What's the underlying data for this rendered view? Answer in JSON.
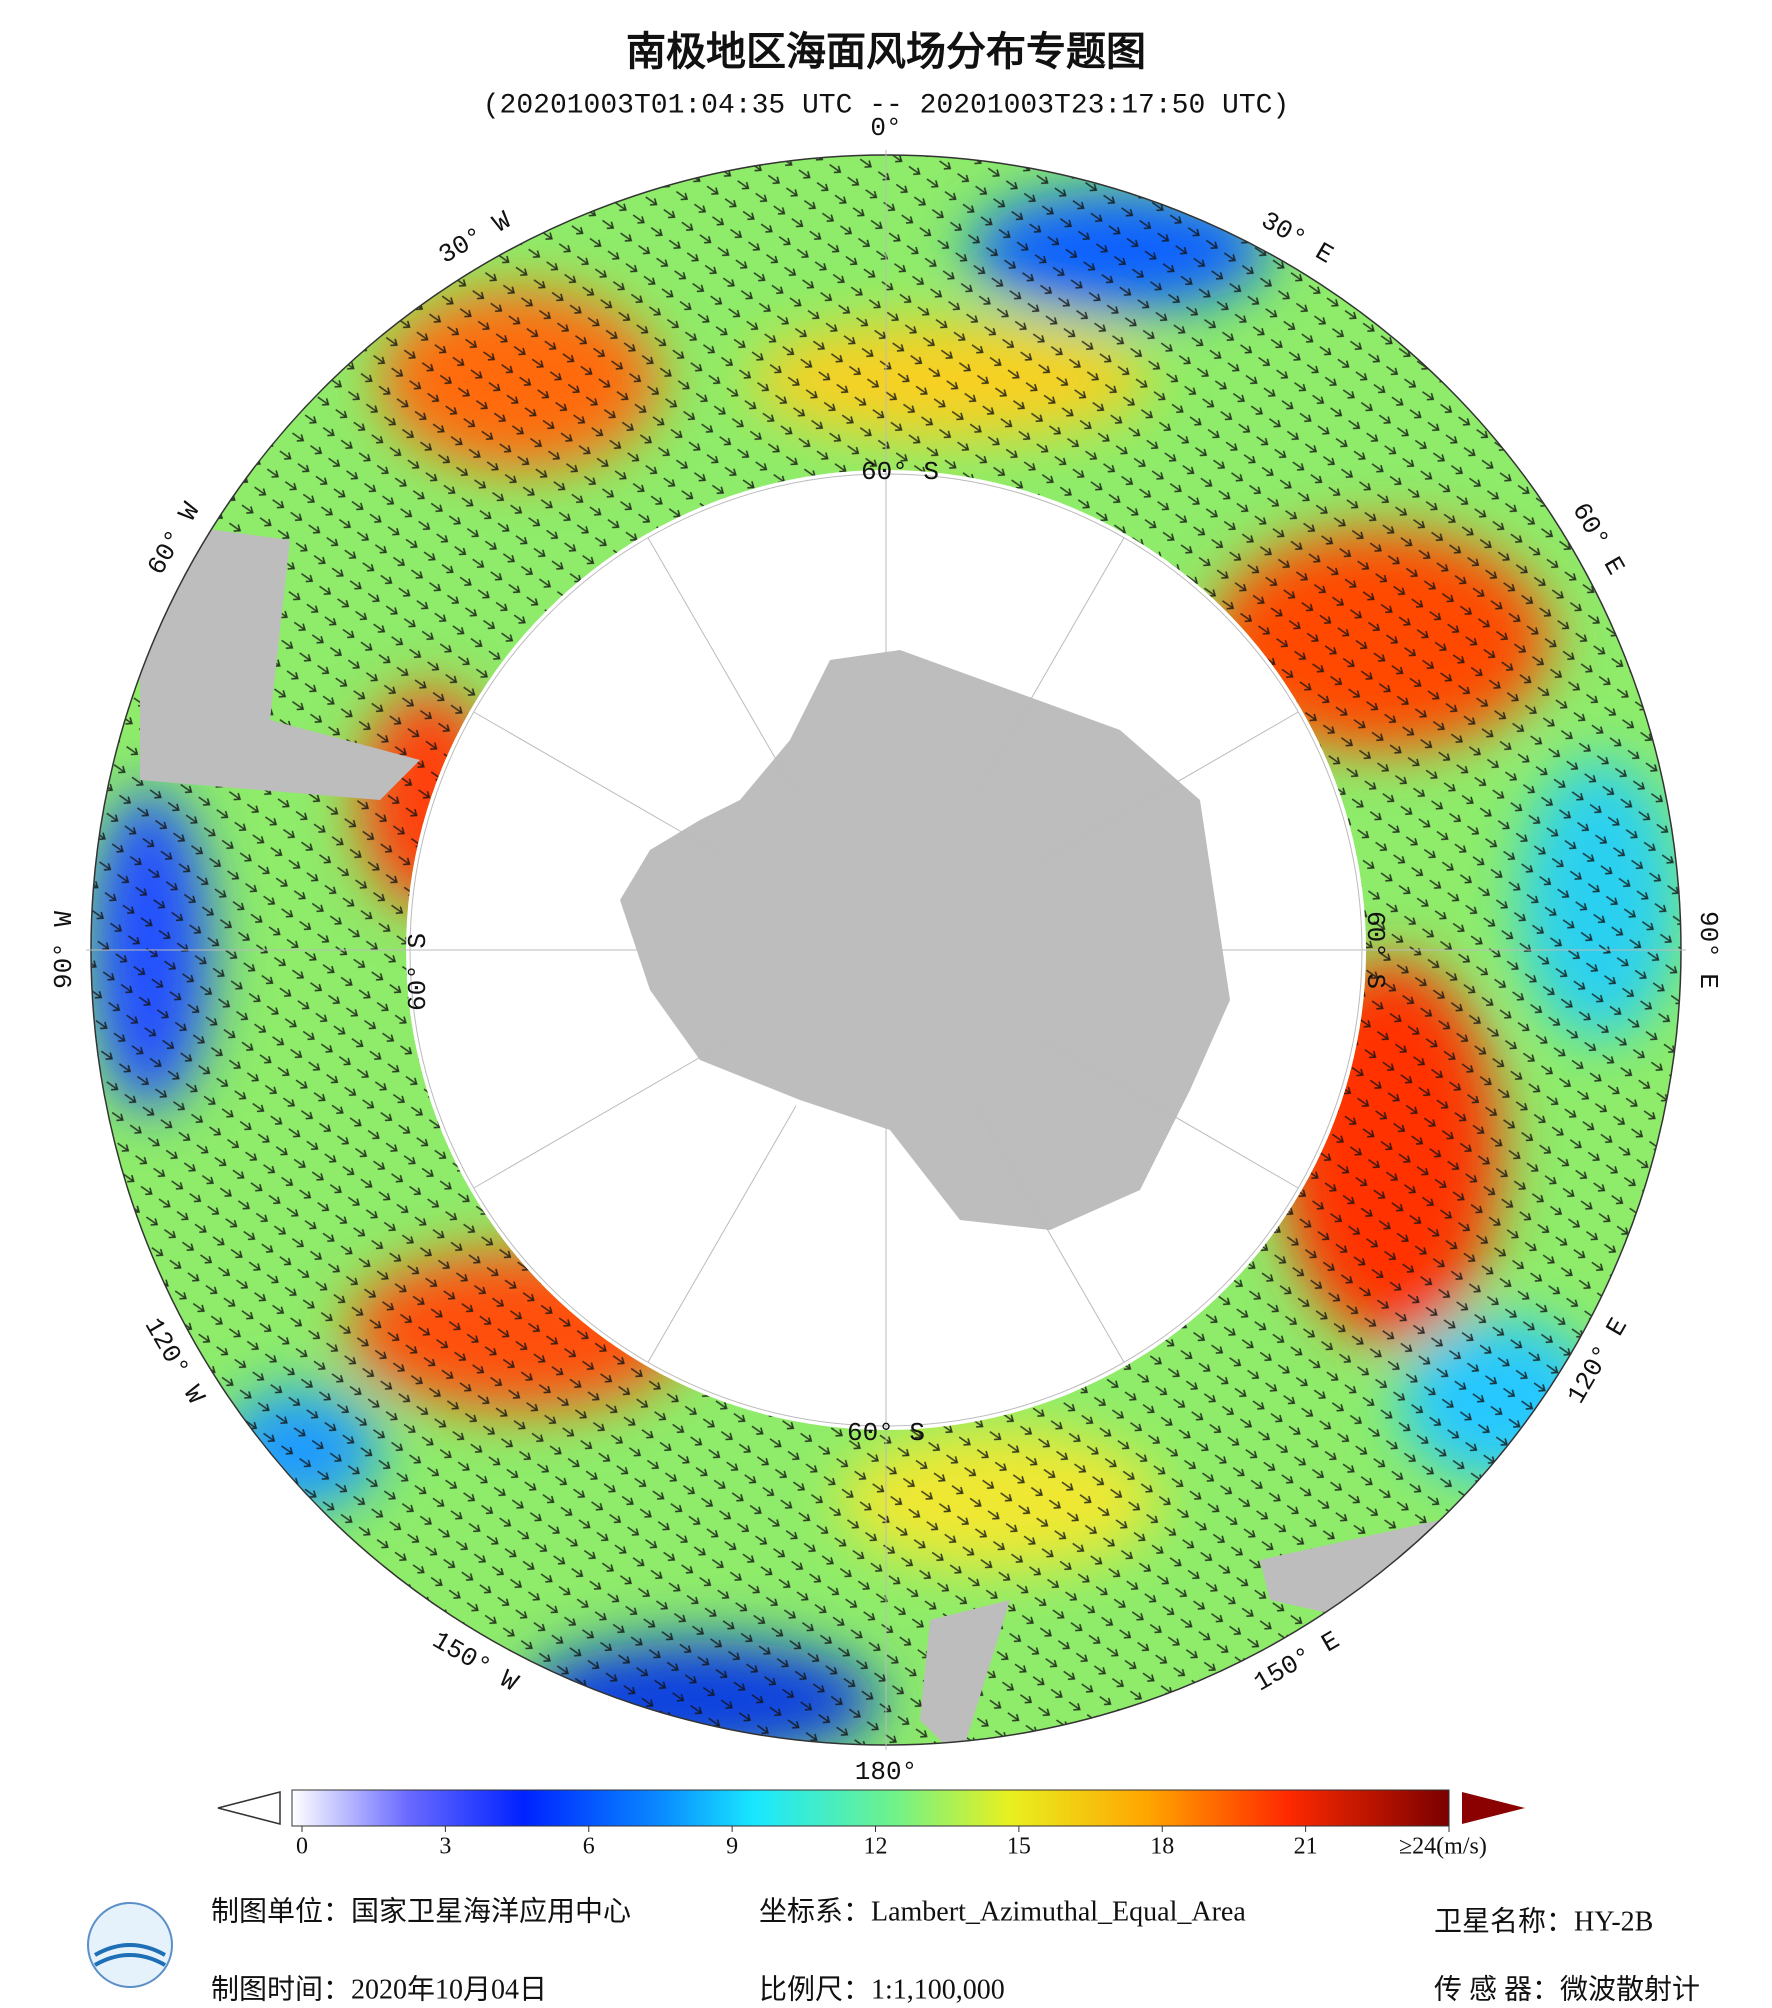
{
  "header": {
    "title": "南极地区海面风场分布专题图",
    "subtitle": "(20201003T01:04:35 UTC -- 20201003T23:17:50 UTC)"
  },
  "map": {
    "longitude_labels": [
      "0°",
      "30° E",
      "60° E",
      "90° E",
      "120° E",
      "150° E",
      "180°",
      "150° W",
      "120° W",
      "90° W",
      "60° W",
      "30° W"
    ],
    "latitude_labels": [
      "60° S",
      "60° S",
      "60° S",
      "60° S"
    ]
  },
  "colorbar": {
    "range": [
      0,
      24
    ],
    "ticks": [
      0,
      3,
      6,
      9,
      12,
      15,
      18,
      21,
      {
        "value": 24,
        "label": "≥24(m/s)"
      }
    ]
  },
  "footer": {
    "producer": "制图单位：国家卫星海洋应用中心",
    "date": "制图时间：2020年10月04日",
    "projection": "坐标系：Lambert_Azimuthal_Equal_Area",
    "scale": "比例尺：1:1,100,000",
    "satellite": "卫星名称：HY-2B",
    "sensor": "传 感 器：微波散射计"
  }
}
